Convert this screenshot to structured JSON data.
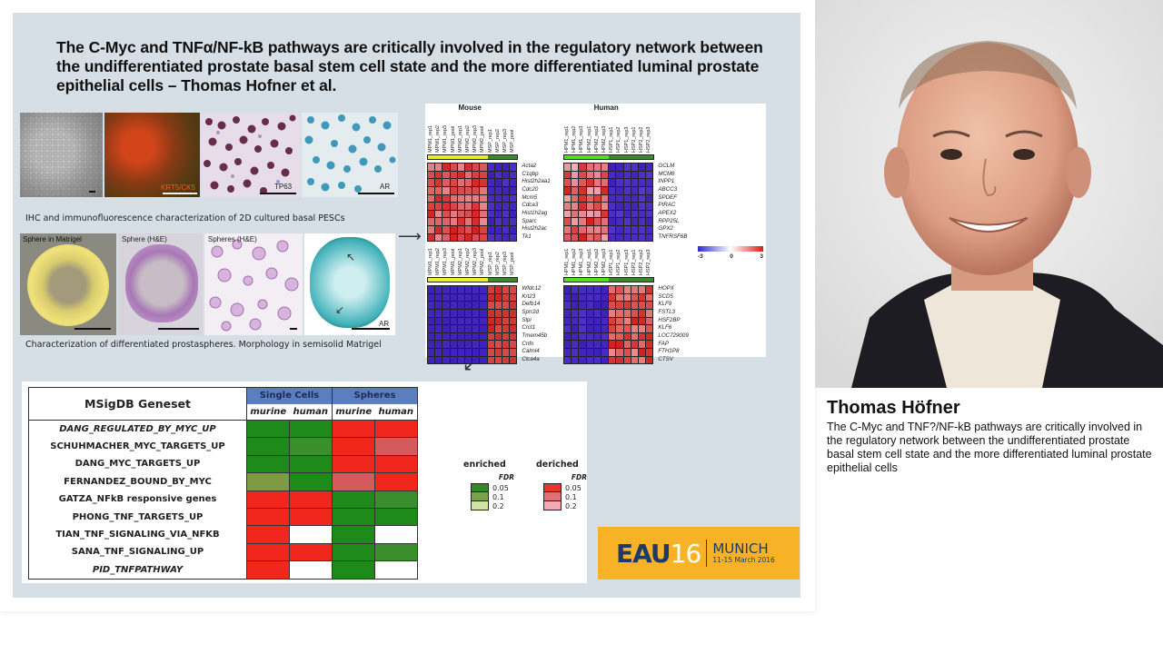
{
  "slide": {
    "title": "The C-Myc and TNFα/NF-kB pathways are critically involved in the regulatory network between the undifferentiated prostate basal stem cell state and the more differentiated luminal prostate epithelial cells – Thomas Hofner et al.",
    "row1": {
      "panels": [
        {
          "label": "",
          "kind": "phase"
        },
        {
          "label": "KRT5/CK5",
          "kind": "fluor"
        },
        {
          "label": "TP63",
          "kind": "ihc-purple"
        },
        {
          "label": "AR",
          "kind": "ihc-blue"
        }
      ],
      "caption": "IHC and immunofluorescence characterization of 2D cultured basal PESCs"
    },
    "row2": {
      "panels": [
        {
          "label": "Sphere in Matrigel",
          "kind": "sphere-yellow"
        },
        {
          "label": "Sphere (H&E)",
          "kind": "sphere-he"
        },
        {
          "label": "Spheres (H&E)",
          "kind": "spheres-he"
        },
        {
          "label": "AR",
          "kind": "sphere-ar"
        }
      ],
      "caption": "Characterization of differentiated prostaspheres. Morphology in semisolid Matrigel"
    },
    "heatmaps": {
      "mouse_label": "Mouse",
      "human_label": "Human",
      "mouse_columns": [
        "MPM1_rep1",
        "MPM1_rep2",
        "MPM1_rep3",
        "MPM1_pool",
        "MPM2_rep1",
        "MPM2_rep2",
        "MPM2_rep3",
        "MPM2_pool",
        "MSP_rep1",
        "MSP_rep2",
        "MSP_rep3",
        "MSP_pool"
      ],
      "human_columns": [
        "HPM1_rep1",
        "HPM1_rep2",
        "HPM1_rep3",
        "HPM2_rep1",
        "HPM2_rep2",
        "HPM2_rep3",
        "HSP1_rep1",
        "HSP1_rep2",
        "HSP1_rep3",
        "HSP2_rep1",
        "HSP2_rep2",
        "HSP2_rep3"
      ],
      "mouse_up_genes": [
        "Acta2",
        "C1qbp",
        "Hist2h2aa1",
        "Cdc20",
        "Mcm5",
        "Cdca3",
        "Hist1h2ag",
        "Sparc",
        "Hist2h2ac",
        "Tk1"
      ],
      "human_up_genes": [
        "GCLM",
        "MCM6",
        "INPP1",
        "ABCC3",
        "SPDEF",
        "PIRAC",
        "APEX2",
        "RPP25L",
        "GPX2",
        "TNFRSF6B"
      ],
      "mouse_down_genes": [
        "Wfdc12",
        "Krt23",
        "Defb14",
        "Sprr2d",
        "Slpi",
        "Crct1",
        "Tmem45b",
        "Cnfn",
        "Calml4",
        "Clca4a"
      ],
      "human_down_genes": [
        "HOPX",
        "SCD5",
        "KLF9",
        "FSTL3",
        "HSF2BP",
        "KLF6",
        "LOC729009",
        "FAP",
        "FTH1P8",
        "CTSV"
      ],
      "scale": {
        "min": "-3",
        "mid": "0",
        "max": "3"
      },
      "colors": {
        "mouse_group_a": "#e8ef2a",
        "mouse_group_b": "#3d8a2e",
        "human_group_a": "#4fe01f",
        "human_group_b": "#3d8a2e",
        "red": "#d21f1f",
        "blue": "#3a1fb8"
      }
    },
    "msigdb": {
      "header": "MSigDB Geneset",
      "groups": [
        "Single Cells",
        "Spheres"
      ],
      "subheaders": [
        "murine",
        "human",
        "murine",
        "human"
      ],
      "rows": [
        {
          "name": "DANG_REGULATED_BY_MYC_UP",
          "italic": true,
          "cells": [
            "g05",
            "g05",
            "r05",
            "r05"
          ]
        },
        {
          "name": "SCHUHMACHER_MYC_TARGETS_UP",
          "italic": false,
          "cells": [
            "g05",
            "g1",
            "r05",
            "r1"
          ]
        },
        {
          "name": "DANG_MYC_TARGETS_UP",
          "italic": false,
          "cells": [
            "g05",
            "g05",
            "r05",
            "r05"
          ]
        },
        {
          "name": "FERNANDEZ_BOUND_BY_MYC",
          "italic": false,
          "cells": [
            "g2",
            "g05",
            "r1",
            "r05"
          ]
        },
        {
          "name": "GATZA_NFkB responsive genes",
          "italic": false,
          "cells": [
            "r05",
            "r05",
            "g05",
            "g1"
          ]
        },
        {
          "name": "PHONG_TNF_TARGETS_UP",
          "italic": false,
          "cells": [
            "r05",
            "r05",
            "g05",
            "g05"
          ]
        },
        {
          "name": "TIAN_TNF_SIGNALING_VIA_NFKB",
          "italic": false,
          "cells": [
            "r05",
            "none",
            "g05",
            "none"
          ]
        },
        {
          "name": "SANA_TNF_SIGNALING_UP",
          "italic": false,
          "cells": [
            "r05",
            "r05",
            "g05",
            "g1"
          ]
        },
        {
          "name": "PID_TNFPATHWAY",
          "italic": true,
          "cells": [
            "r05",
            "none",
            "g05",
            "none"
          ]
        }
      ],
      "cell_colors": {
        "g05": "#1e8a1a",
        "g1": "#3a8f2c",
        "g2": "#7e9a45",
        "r05": "#f1271e",
        "r1": "#d55a5e",
        "none": "#ffffff"
      }
    },
    "legend": {
      "enriched": {
        "title": "enriched",
        "fdr_label": "FDR",
        "levels": [
          {
            "value": "0.05",
            "color": "#2f8a22"
          },
          {
            "value": "0.1",
            "color": "#7aa34a"
          },
          {
            "value": "0.2",
            "color": "#cfe3a6"
          }
        ]
      },
      "depleted": {
        "title": "deriched",
        "fdr_label": "FDR",
        "levels": [
          {
            "value": "0.05",
            "color": "#e8352f"
          },
          {
            "value": "0.1",
            "color": "#e27076"
          },
          {
            "value": "0.2",
            "color": "#f0aab0"
          }
        ]
      }
    },
    "logo": {
      "word": "EAU",
      "number": "16",
      "city": "MUNICH",
      "dates": "11-15 March 2016"
    }
  },
  "speaker": {
    "name": "Thomas Höfner",
    "description": "The C-Myc and TNF?/NF-kB pathways are critically involved in the regulatory network between the undifferentiated prostate basal stem cell state and the more differentiated luminal prostate epithelial cells"
  }
}
